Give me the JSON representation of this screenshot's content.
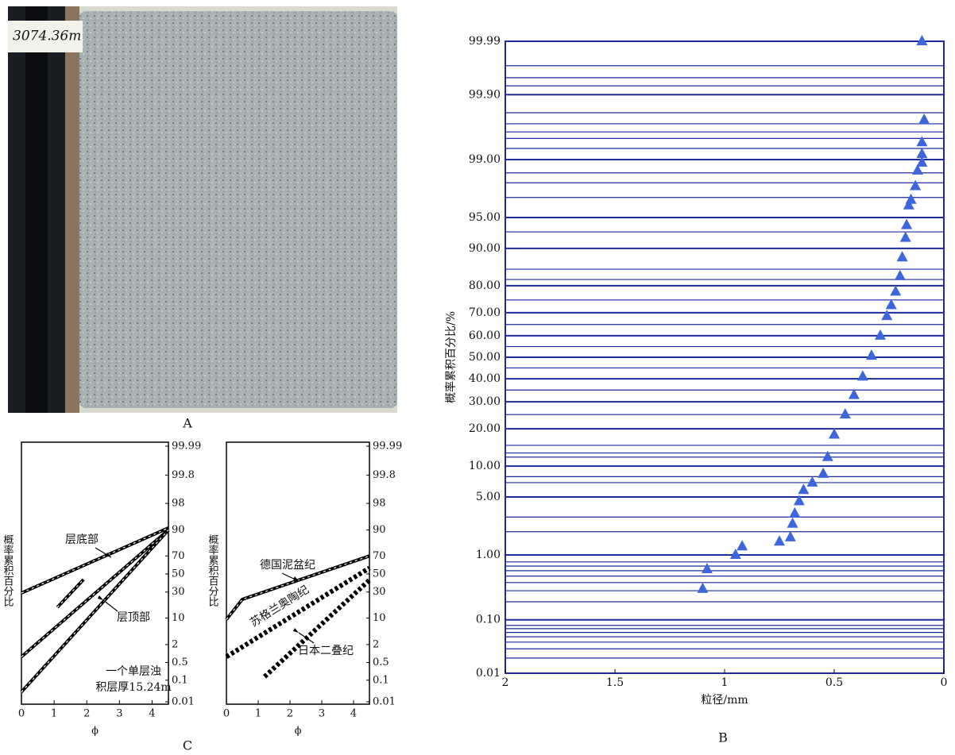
{
  "figure": {
    "photo_text": "3074.36m",
    "captions": [
      "A",
      "C",
      "B"
    ]
  },
  "chart_data": [
    {
      "type": "scatter",
      "yscale": "probability",
      "ylabel": "概率累积百分比/%",
      "xlabel": "粒径/mm",
      "xlim": [
        2,
        0
      ],
      "xticks": [
        2,
        1.5,
        1,
        0.5,
        0
      ],
      "ylim": [
        0.01,
        99.99
      ],
      "yticks": [
        99.99,
        {
          "value": 99.9,
          "label": "99.90"
        },
        {
          "value": 99,
          "label": "99.00"
        },
        {
          "value": 95,
          "label": "95.00"
        },
        {
          "value": 90,
          "label": "90.00"
        },
        {
          "value": 80,
          "label": "80.00"
        },
        {
          "value": 70,
          "label": "70.00"
        },
        {
          "value": 60,
          "label": "60.00"
        },
        {
          "value": 50,
          "label": "50.00"
        },
        {
          "value": 40,
          "label": "40.00"
        },
        {
          "value": 30,
          "label": "30.00"
        },
        {
          "value": 20,
          "label": "20.00"
        },
        {
          "value": 10,
          "label": "10.00"
        },
        {
          "value": 5,
          "label": "5.00"
        },
        {
          "value": 1,
          "label": "1.00"
        },
        {
          "value": 0.1,
          "label": "0.10"
        },
        0.01
      ],
      "grid": true,
      "grid_color": "#1b2c9c",
      "ygrid": [
        99.97,
        99.95,
        99.93,
        99.8,
        99.7,
        99.6,
        99.5,
        99.3,
        98.5,
        98,
        97,
        93,
        85,
        82,
        75,
        65,
        55,
        45,
        35,
        25,
        15,
        13,
        12,
        8,
        7,
        3,
        2,
        0.8,
        0.7,
        0.6,
        0.5,
        0.4,
        0.3,
        0.2,
        0.08,
        0.07,
        0.06,
        0.05,
        0.04,
        0.03,
        0.02
      ],
      "color": "#3d66dc",
      "x": [
        0.1,
        0.09,
        0.1,
        0.1,
        0.1,
        0.12,
        0.13,
        0.15,
        0.16,
        0.17,
        0.175,
        0.19,
        0.2,
        0.22,
        0.24,
        0.26,
        0.29,
        0.33,
        0.37,
        0.41,
        0.45,
        0.5,
        0.53,
        0.55,
        0.6,
        0.64,
        0.66,
        0.68,
        0.69,
        0.7,
        0.75,
        0.92,
        0.95,
        1.08,
        1.1
      ],
      "values": [
        99.99,
        99.74,
        99.43,
        99.16,
        98.9,
        98.6,
        97.8,
        96.8,
        96.3,
        94,
        92,
        88,
        83,
        78,
        73,
        68.6,
        60,
        50.7,
        41,
        32.8,
        25,
        18.1,
        12,
        8.5,
        7,
        5.9,
        4.5,
        3.3,
        2.5,
        1.7,
        1.5,
        1.3,
        1,
        0.63,
        0.32
      ]
    },
    {
      "type": "line",
      "yscale": "probability",
      "ylabel": "概率累积百分比",
      "xlabel": "ϕ",
      "xlim": [
        0,
        4.5
      ],
      "xticks": [
        0,
        1,
        2,
        3,
        4
      ],
      "ylim": [
        0.01,
        99.99
      ],
      "yticks": [
        99.99,
        99.8,
        98,
        90,
        70,
        50,
        30,
        10,
        2,
        0.5,
        0.1,
        0.01
      ],
      "grid": false,
      "series": [
        {
          "name": "层底部",
          "color": "#000000",
          "style": "chain",
          "x": [
            0,
            4.5
          ],
          "values": [
            29,
            91
          ]
        },
        {
          "color": "#000000",
          "style": "chain",
          "x": [
            0,
            4.5
          ],
          "values": [
            0.8,
            90
          ]
        },
        {
          "name": "层顶部",
          "color": "#000000",
          "style": "chain",
          "x": [
            0,
            4.5
          ],
          "values": [
            0.03,
            90
          ]
        },
        {
          "color": "#000000",
          "style": "chain",
          "x": [
            1.1,
            1.9
          ],
          "values": [
            16.6,
            43.6
          ]
        }
      ],
      "annotations": [
        "一个单层浊",
        "积层厚15.24m"
      ]
    },
    {
      "type": "line",
      "yscale": "probability",
      "ylabel": "概率累积百分比",
      "xlabel": "ϕ",
      "xlim": [
        0,
        4.5
      ],
      "xticks": [
        0,
        1,
        2,
        3,
        4
      ],
      "ylim": [
        0.01,
        99.99
      ],
      "yticks": [
        99.99,
        99.8,
        98,
        90,
        70,
        50,
        30,
        10,
        2,
        0.5,
        0.1,
        0.01
      ],
      "grid": false,
      "series": [
        {
          "name": "德国泥盆纪",
          "color": "#000000",
          "style": "chain",
          "x": [
            0,
            0.5,
            4.5
          ],
          "values": [
            9.3,
            23,
            70
          ]
        },
        {
          "name": "苏格兰奥陶纪",
          "color": "#000000",
          "style": "dotted",
          "x": [
            0,
            4.5
          ],
          "values": [
            0.8,
            57
          ]
        },
        {
          "name": "日本二叠纪",
          "color": "#000000",
          "style": "dotted",
          "x": [
            1.2,
            4.5
          ],
          "values": [
            0.14,
            43
          ]
        }
      ]
    }
  ]
}
